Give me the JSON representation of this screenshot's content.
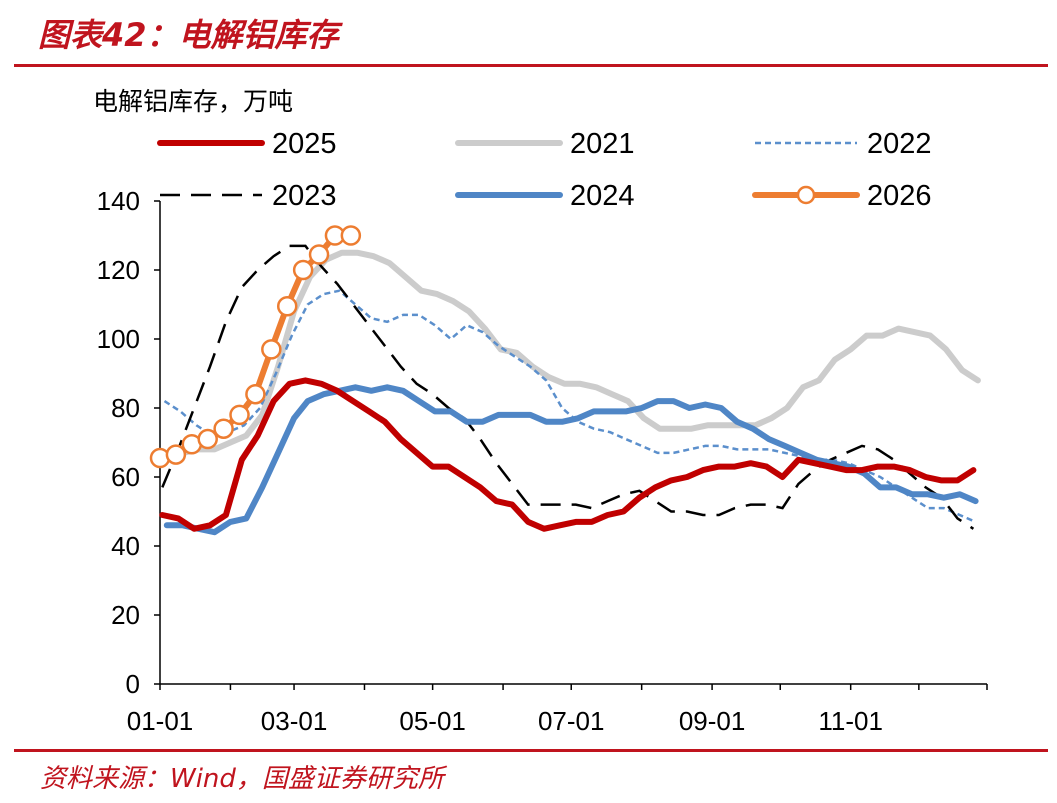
{
  "figure": {
    "title": "图表42：电解铝库存",
    "source": "资料来源：Wind，国盛证券研究所"
  },
  "colors": {
    "brand_red": "#c0141e",
    "2025": "#c00000",
    "2021": "#cccccc",
    "2022": "#5b8fcc",
    "2023": "#000000",
    "2024": "#4f86c6",
    "2026": "#ed7d31"
  },
  "chart_data": {
    "type": "line",
    "title": "",
    "ylabel": "电解铝库存，万吨",
    "xlabel": "",
    "ylim": [
      0,
      140
    ],
    "yticks": [
      0,
      20,
      40,
      60,
      80,
      100,
      120,
      140
    ],
    "xlim": [
      "01-01",
      "12-31"
    ],
    "xticks": [
      "01-01",
      "03-01",
      "05-01",
      "07-01",
      "09-01",
      "11-01"
    ],
    "grid": false,
    "legend_position": "top",
    "legend_order": [
      "2025",
      "2021",
      "2022",
      "2023",
      "2024",
      "2026"
    ],
    "series": [
      {
        "name": "2021",
        "style": "solid-thick",
        "color": "#cccccc",
        "x": [
          "01-04",
          "01-11",
          "01-18",
          "01-25",
          "02-01",
          "02-08",
          "02-15",
          "02-22",
          "03-01",
          "03-08",
          "03-15",
          "03-22",
          "03-29",
          "04-05",
          "04-12",
          "04-19",
          "04-26",
          "05-03",
          "05-10",
          "05-17",
          "05-24",
          "05-31",
          "06-07",
          "06-14",
          "06-21",
          "06-28",
          "07-05",
          "07-12",
          "07-19",
          "07-26",
          "08-02",
          "08-09",
          "08-16",
          "08-23",
          "08-30",
          "09-06",
          "09-13",
          "09-20",
          "09-27",
          "10-04",
          "10-11",
          "10-18",
          "10-25",
          "11-01",
          "11-08",
          "11-15",
          "11-22",
          "11-29",
          "12-06",
          "12-13",
          "12-20",
          "12-27"
        ],
        "y": [
          66,
          67,
          68,
          68,
          70,
          72,
          78,
          92,
          108,
          118,
          123,
          125,
          125,
          124,
          122,
          118,
          114,
          113,
          111,
          108,
          103,
          97,
          96,
          92,
          89,
          87,
          87,
          86,
          84,
          82,
          77,
          74,
          74,
          74,
          75,
          75,
          75,
          75,
          77,
          80,
          86,
          88,
          94,
          97,
          101,
          101,
          103,
          102,
          101,
          97,
          91,
          88
        ]
      },
      {
        "name": "2022",
        "style": "dotted",
        "color": "#5b8fcc",
        "x": [
          "01-03",
          "01-10",
          "01-17",
          "01-24",
          "01-31",
          "02-07",
          "02-14",
          "02-21",
          "02-28",
          "03-07",
          "03-14",
          "03-21",
          "03-28",
          "04-04",
          "04-11",
          "04-18",
          "04-25",
          "05-02",
          "05-09",
          "05-16",
          "05-23",
          "05-30",
          "06-06",
          "06-13",
          "06-20",
          "06-27",
          "07-04",
          "07-11",
          "07-18",
          "07-25",
          "08-01",
          "08-08",
          "08-15",
          "08-22",
          "08-29",
          "09-05",
          "09-12",
          "09-19",
          "09-26",
          "10-03",
          "10-10",
          "10-17",
          "10-24",
          "10-31",
          "11-07",
          "11-14",
          "11-21",
          "11-28",
          "12-05",
          "12-12",
          "12-19",
          "12-26"
        ],
        "y": [
          82,
          79,
          75,
          72,
          73,
          75,
          80,
          90,
          101,
          110,
          113,
          114,
          110,
          106,
          105,
          107,
          107,
          104,
          100,
          104,
          102,
          98,
          95,
          92,
          88,
          80,
          76,
          74,
          73,
          71,
          69,
          67,
          67,
          68,
          69,
          69,
          68,
          68,
          68,
          67,
          66,
          65,
          65,
          64,
          62,
          60,
          57,
          54,
          51,
          51,
          49,
          47
        ]
      },
      {
        "name": "2023",
        "style": "dashed",
        "color": "#000000",
        "x": [
          "01-02",
          "01-09",
          "01-16",
          "01-23",
          "01-30",
          "02-06",
          "02-13",
          "02-20",
          "02-27",
          "03-06",
          "03-13",
          "03-20",
          "03-27",
          "04-03",
          "04-10",
          "04-17",
          "04-24",
          "05-01",
          "05-08",
          "05-15",
          "05-22",
          "05-29",
          "06-05",
          "06-12",
          "06-19",
          "06-26",
          "07-03",
          "07-10",
          "07-17",
          "07-24",
          "07-31",
          "08-07",
          "08-14",
          "08-21",
          "08-28",
          "09-04",
          "09-11",
          "09-18",
          "09-25",
          "10-02",
          "10-09",
          "10-16",
          "10-23",
          "10-30",
          "11-06",
          "11-13",
          "11-20",
          "11-27",
          "12-04",
          "12-11",
          "12-18",
          "12-25"
        ],
        "y": [
          57,
          68,
          80,
          92,
          105,
          115,
          120,
          124,
          127,
          127,
          121,
          116,
          110,
          104,
          98,
          92,
          87,
          84,
          80,
          77,
          71,
          64,
          58,
          52,
          52,
          52,
          52,
          51,
          53,
          55,
          56,
          53,
          50,
          50,
          49,
          49,
          51,
          52,
          52,
          51,
          58,
          62,
          65,
          67,
          69,
          68,
          65,
          61,
          57,
          54,
          48,
          45
        ]
      },
      {
        "name": "2024",
        "style": "solid-thick",
        "color": "#4f86c6",
        "x": [
          "01-04",
          "01-11",
          "01-18",
          "01-25",
          "02-01",
          "02-08",
          "02-15",
          "02-22",
          "02-29",
          "03-07",
          "03-14",
          "03-21",
          "03-28",
          "04-04",
          "04-11",
          "04-18",
          "04-25",
          "05-02",
          "05-09",
          "05-16",
          "05-23",
          "05-30",
          "06-06",
          "06-13",
          "06-20",
          "06-27",
          "07-04",
          "07-11",
          "07-18",
          "07-25",
          "08-01",
          "08-08",
          "08-15",
          "08-22",
          "08-29",
          "09-05",
          "09-12",
          "09-19",
          "09-26",
          "10-03",
          "10-10",
          "10-17",
          "10-24",
          "10-31",
          "11-07",
          "11-14",
          "11-21",
          "11-28",
          "12-05",
          "12-12",
          "12-19",
          "12-26"
        ],
        "y": [
          46,
          46,
          45,
          44,
          47,
          48,
          57,
          67,
          77,
          82,
          84,
          85,
          86,
          85,
          86,
          85,
          82,
          79,
          79,
          76,
          76,
          78,
          78,
          78,
          76,
          76,
          77,
          79,
          79,
          79,
          80,
          82,
          82,
          80,
          81,
          80,
          76,
          74,
          71,
          69,
          67,
          65,
          64,
          63,
          61,
          57,
          57,
          55,
          55,
          54,
          55,
          53
        ]
      },
      {
        "name": "2025",
        "style": "solid-thick",
        "color": "#c00000",
        "x": [
          "01-02",
          "01-09",
          "01-16",
          "01-23",
          "01-30",
          "02-06",
          "02-13",
          "02-20",
          "02-27",
          "03-06",
          "03-13",
          "03-20",
          "03-27",
          "04-03",
          "04-10",
          "04-17",
          "04-24",
          "05-01",
          "05-08",
          "05-15",
          "05-22",
          "05-29",
          "06-05",
          "06-12",
          "06-19",
          "06-26",
          "07-03",
          "07-10",
          "07-17",
          "07-24",
          "07-31",
          "08-07",
          "08-14",
          "08-21",
          "08-28",
          "09-04",
          "09-11",
          "09-18",
          "09-25",
          "10-02",
          "10-09",
          "10-16",
          "10-23",
          "10-30",
          "11-06",
          "11-13",
          "11-20",
          "11-27",
          "12-04",
          "12-11",
          "12-18",
          "12-25"
        ],
        "y": [
          49,
          48,
          45,
          46,
          49,
          65,
          72,
          82,
          87,
          88,
          87,
          85,
          82,
          79,
          76,
          71,
          67,
          63,
          63,
          60,
          57,
          53,
          52,
          47,
          45,
          46,
          47,
          47,
          49,
          50,
          54,
          57,
          59,
          60,
          62,
          63,
          63,
          64,
          63,
          60,
          65,
          64,
          63,
          62,
          62,
          63,
          63,
          62,
          60,
          59,
          59,
          62
        ]
      },
      {
        "name": "2026",
        "style": "solid-markers",
        "color": "#ed7d31",
        "x": [
          "01-01",
          "01-08",
          "01-15",
          "01-22",
          "01-29",
          "02-05",
          "02-12",
          "02-19",
          "02-26",
          "03-05",
          "03-12",
          "03-19",
          "03-26"
        ],
        "y": [
          65.5,
          66.5,
          69.5,
          71,
          74,
          78,
          84,
          97,
          109.5,
          120,
          124.5,
          130,
          130
        ]
      }
    ]
  }
}
